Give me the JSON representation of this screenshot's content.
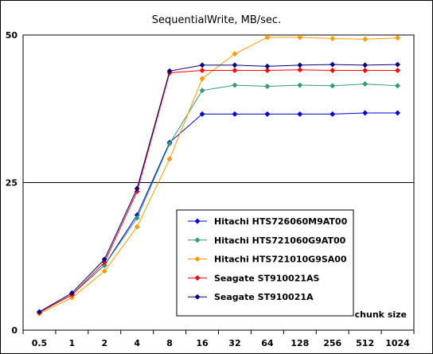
{
  "chart_data": {
    "type": "line",
    "title": "SequentialWrite, MB/sec.",
    "xlabel": "chunk size",
    "ylabel": "",
    "categories": [
      "0.5",
      "1",
      "2",
      "4",
      "8",
      "16",
      "32",
      "64",
      "128",
      "256",
      "512",
      "1024"
    ],
    "ylim": [
      0,
      50
    ],
    "yticks": [
      "0",
      "25",
      "50"
    ],
    "grid": "horizontal line at 25",
    "legend_position": "lower-right inside plot",
    "series": [
      {
        "name": "Hitachi HTS726060M9AT00",
        "color": "#0000cc",
        "values": [
          3.0,
          6.0,
          11.0,
          19.5,
          31.8,
          36.6,
          36.6,
          36.6,
          36.6,
          36.6,
          36.8,
          36.8
        ]
      },
      {
        "name": "Hitachi HTS721060G9AT00",
        "color": "#339977",
        "values": [
          3.0,
          6.0,
          11.0,
          19.0,
          31.6,
          40.6,
          41.5,
          41.3,
          41.5,
          41.4,
          41.7,
          41.4
        ]
      },
      {
        "name": "Hitachi HTS721010G9SA00",
        "color": "#ff9900",
        "values": [
          2.8,
          5.5,
          10.0,
          17.5,
          29.0,
          42.6,
          46.8,
          49.6,
          49.6,
          49.4,
          49.3,
          49.5
        ]
      },
      {
        "name": "Seagate ST910021AS",
        "color": "#ff0000",
        "values": [
          3.0,
          6.0,
          11.5,
          23.5,
          43.6,
          44.0,
          44.0,
          44.0,
          44.1,
          44.0,
          44.0,
          44.0
        ]
      },
      {
        "name": "Seagate ST910021A",
        "color": "#000080",
        "values": [
          3.1,
          6.3,
          12.0,
          24.0,
          43.9,
          44.9,
          44.9,
          44.7,
          44.9,
          45.0,
          44.9,
          45.0
        ]
      }
    ]
  }
}
